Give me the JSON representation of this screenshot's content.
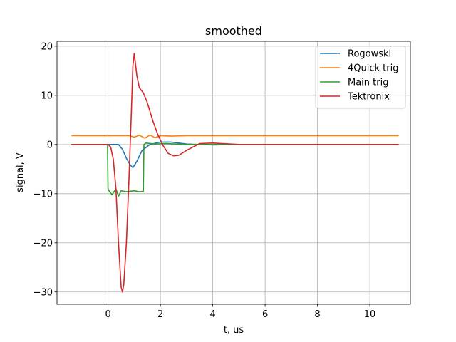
{
  "chart_data": {
    "type": "line",
    "title": "smoothed",
    "xlabel": "t, us",
    "ylabel": "signal, V",
    "xlim": [
      -1.95,
      11.55
    ],
    "ylim": [
      -32.5,
      21.0
    ],
    "xticks": [
      0,
      2,
      4,
      6,
      8,
      10
    ],
    "yticks": [
      -30,
      -20,
      -10,
      0,
      10,
      20
    ],
    "xtick_labels": [
      "0",
      "2",
      "4",
      "6",
      "8",
      "10"
    ],
    "ytick_labels": [
      "−30",
      "−20",
      "−10",
      "0",
      "10",
      "20"
    ],
    "grid": true,
    "legend_position": "top-right",
    "series": [
      {
        "name": "Rogowski",
        "color": "#1f77b4",
        "x": [
          -1.4,
          0.0,
          0.4,
          0.55,
          0.7,
          0.85,
          0.95,
          1.1,
          1.3,
          1.6,
          2.0,
          2.4,
          3.0,
          4.0,
          5.0,
          8.0,
          11.0
        ],
        "y": [
          0.0,
          0.0,
          0.0,
          -1.0,
          -2.8,
          -4.2,
          -4.7,
          -3.4,
          -1.2,
          0.0,
          0.5,
          0.5,
          0.1,
          -0.1,
          0.0,
          0.0,
          0.0
        ]
      },
      {
        "name": "4Quick trig",
        "color": "#ff7f0e",
        "x": [
          -1.4,
          0.0,
          0.8,
          1.0,
          1.2,
          1.4,
          1.6,
          1.8,
          2.0,
          2.4,
          3.0,
          5.0,
          8.0,
          11.1
        ],
        "y": [
          1.8,
          1.8,
          1.8,
          1.5,
          1.9,
          1.3,
          1.9,
          1.4,
          1.8,
          1.7,
          1.8,
          1.8,
          1.8,
          1.8
        ]
      },
      {
        "name": "Main trig",
        "color": "#2ca02c",
        "x": [
          -1.4,
          -0.02,
          0.0,
          0.05,
          0.15,
          0.3,
          0.4,
          0.5,
          0.7,
          1.0,
          1.2,
          1.35,
          1.37,
          1.45,
          1.8,
          2.2,
          2.6,
          3.0,
          4.0,
          6.0,
          8.0,
          10.0,
          11.1
        ],
        "y": [
          0.0,
          0.0,
          -9.0,
          -9.5,
          -10.2,
          -9.0,
          -10.5,
          -9.4,
          -9.6,
          -9.4,
          -9.6,
          -9.5,
          0.0,
          0.3,
          0.1,
          0.2,
          0.1,
          0.0,
          0.0,
          0.0,
          0.0,
          0.0,
          0.0
        ]
      },
      {
        "name": "Tektronix",
        "color": "#d62728",
        "x": [
          -1.4,
          0.0,
          0.1,
          0.2,
          0.3,
          0.4,
          0.5,
          0.55,
          0.6,
          0.7,
          0.8,
          0.9,
          0.95,
          1.0,
          1.1,
          1.2,
          1.35,
          1.5,
          1.7,
          1.9,
          2.1,
          2.3,
          2.5,
          2.7,
          3.0,
          3.5,
          4.0,
          5.0,
          8.0,
          11.1
        ],
        "y": [
          0.0,
          0.0,
          -0.5,
          -3.0,
          -9.0,
          -20.0,
          -29.0,
          -30.0,
          -28.5,
          -20.0,
          -7.0,
          8.0,
          16.0,
          18.5,
          14.0,
          11.5,
          10.5,
          8.5,
          5.0,
          2.0,
          -0.2,
          -1.8,
          -2.3,
          -2.2,
          -1.2,
          0.2,
          0.3,
          0.0,
          0.0,
          0.0
        ]
      }
    ]
  }
}
